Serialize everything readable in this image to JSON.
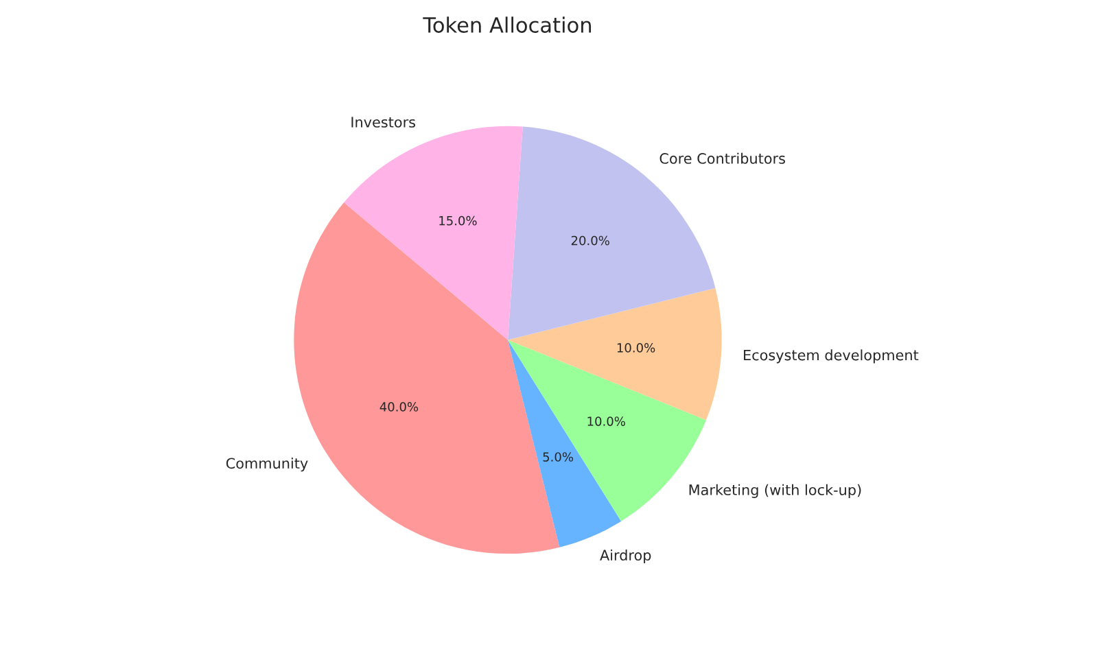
{
  "chart_data": {
    "type": "pie",
    "title": "Token Allocation",
    "categories": [
      "Community",
      "Airdrop",
      "Marketing (with lock-up)",
      "Ecosystem development",
      "Core Contributors",
      "Investors"
    ],
    "values": [
      40,
      5,
      10,
      10,
      20,
      15
    ],
    "value_labels": [
      "40.0%",
      "5.0%",
      "10.0%",
      "10.0%",
      "20.0%",
      "15.0%"
    ],
    "colors": [
      "#ff9999",
      "#66b3ff",
      "#99ff99",
      "#ffcc99",
      "#c2c2f0",
      "#ffb3e6"
    ]
  }
}
